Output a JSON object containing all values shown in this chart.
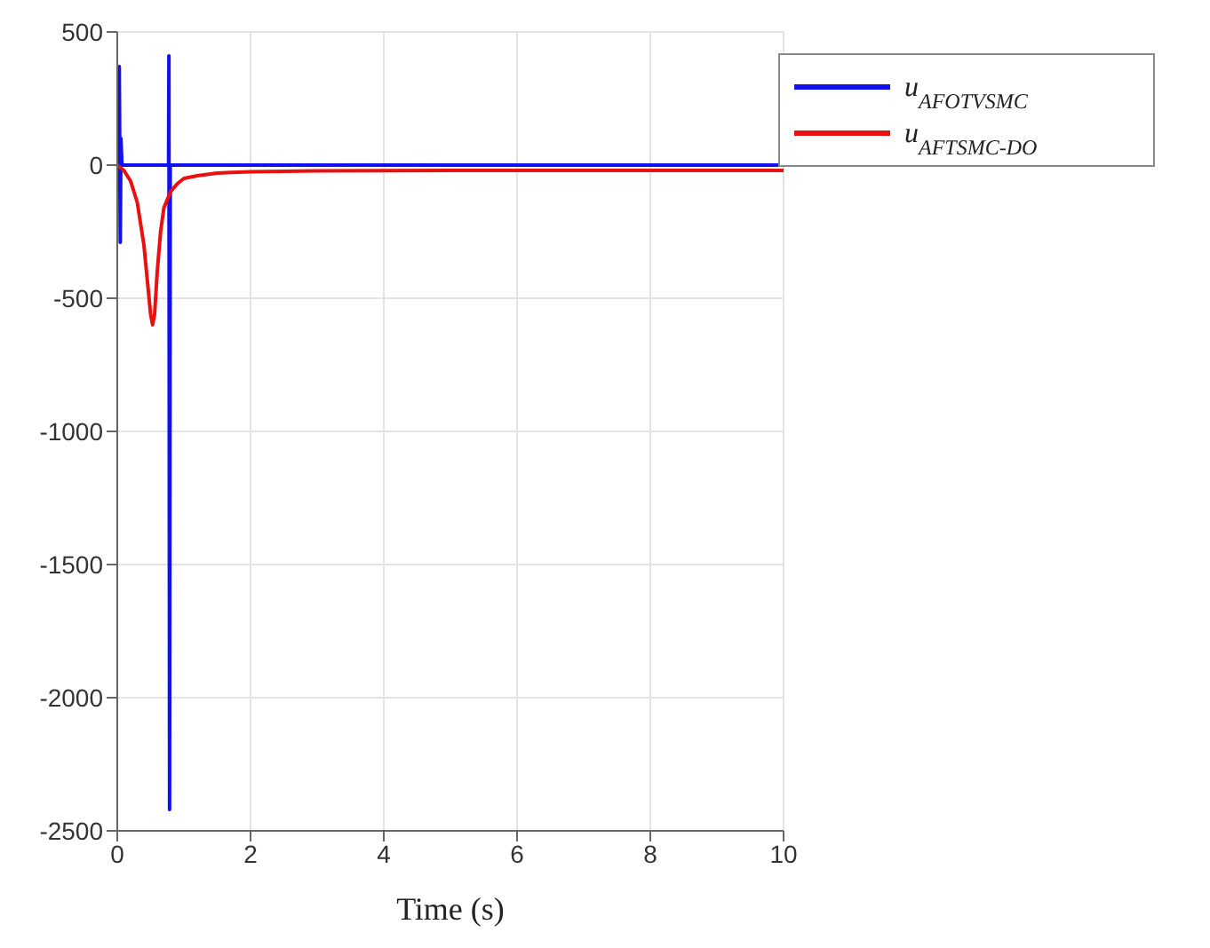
{
  "chart_data": {
    "type": "line",
    "xlabel": "Time (s)",
    "xlim": [
      0,
      10
    ],
    "xticks": [
      0,
      2,
      4,
      6,
      8,
      10
    ],
    "ylim": [
      -2500,
      500
    ],
    "yticks": [
      -2500,
      -2000,
      -1500,
      -1000,
      -500,
      0,
      500
    ],
    "grid": true,
    "legend": "top right",
    "series": [
      {
        "name": "u$_{AFOTVSMC}$",
        "color": "#1010f0",
        "x": [
          0,
          0.02,
          0.03,
          0.045,
          0.055,
          0.07,
          0.1,
          0.5,
          0.77,
          0.775,
          0.785,
          0.795,
          1,
          2,
          5,
          10
        ],
        "values": [
          130,
          0,
          370,
          -290,
          100,
          0,
          0,
          0,
          0,
          410,
          -2420,
          0,
          0,
          0,
          0,
          0
        ]
      },
      {
        "name": "u$_{AFTSMC-DO}$",
        "color": "#e81010",
        "x": [
          0,
          0.1,
          0.2,
          0.3,
          0.4,
          0.45,
          0.5,
          0.53,
          0.56,
          0.6,
          0.65,
          0.7,
          0.8,
          0.9,
          1,
          1.2,
          1.5,
          2,
          3,
          5,
          10
        ],
        "values": [
          0,
          -20,
          -60,
          -140,
          -300,
          -430,
          -560,
          -600,
          -560,
          -400,
          -250,
          -160,
          -100,
          -70,
          -50,
          -40,
          -30,
          -25,
          -22,
          -20,
          -20
        ]
      }
    ]
  }
}
